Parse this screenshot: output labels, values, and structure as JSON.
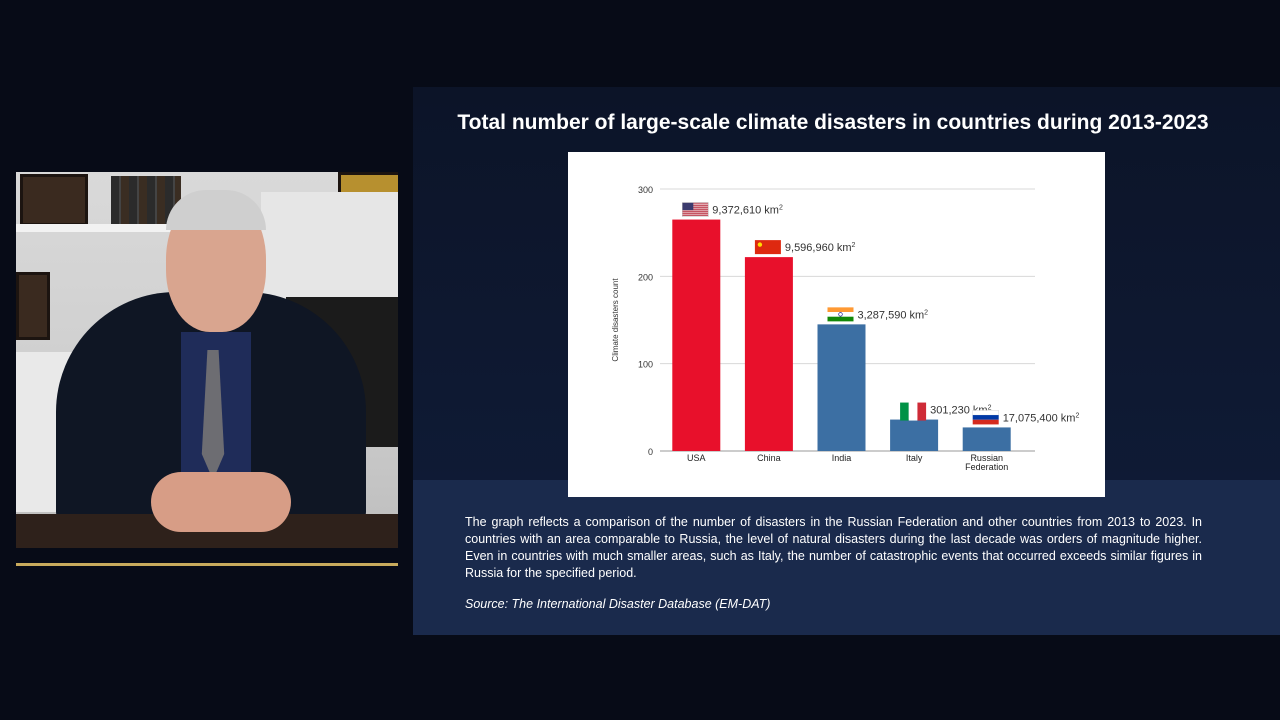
{
  "slide": {
    "title": "Total number of large-scale climate disasters in countries during 2013-2023",
    "description": "The graph reflects a comparison of the number of disasters in the Russian Federation and other countries from 2013 to 2023. In countries with an area comparable to Russia, the level of natural disasters during the last decade was orders of magnitude higher. Even in countries with much smaller areas, such as Italy, the number of catastrophic events that occurred exceeds similar figures in Russia for the specified period.",
    "source": "Source: The International Disaster Database (EM-DAT)"
  },
  "chart_data": {
    "type": "bar",
    "categories": [
      "USA",
      "China",
      "India",
      "Italy",
      "Russian Federation"
    ],
    "values": [
      265,
      222,
      145,
      36,
      27
    ],
    "area_labels": [
      "9,372,610",
      "9,596,960",
      "3,287,590",
      "301,230",
      "17,075,400"
    ],
    "area_unit": "km",
    "area_unit_sup": "2",
    "ylabel": "Climate disasters count",
    "ylim": [
      0,
      300
    ],
    "yticks": [
      0,
      100,
      200,
      300
    ],
    "grid": true,
    "bar_colors": [
      "#e8102b",
      "#e8102b",
      "#3c6fa3",
      "#3c6fa3",
      "#3c6fa3"
    ],
    "flags": [
      "us-flag-icon",
      "china-flag-icon",
      "india-flag-icon",
      "italy-flag-icon",
      "russia-flag-icon"
    ]
  },
  "colors": {
    "accent_line": "#c8ab5d",
    "red_bar": "#e8102b",
    "blue_bar": "#3c6fa3"
  }
}
